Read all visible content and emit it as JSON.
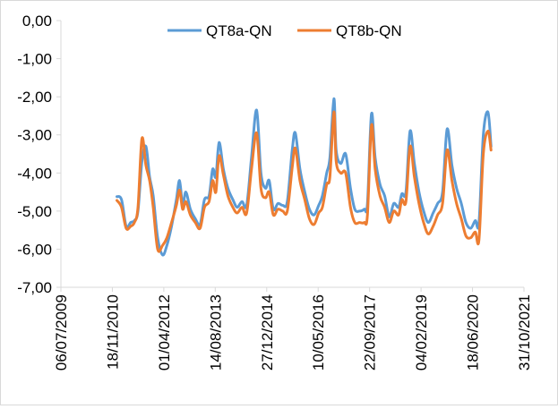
{
  "chart_data": {
    "type": "line",
    "title": "",
    "xlabel": "",
    "ylabel": "",
    "ylim": [
      -7,
      0
    ],
    "y_ticks": [
      "0,00",
      "-1,00",
      "-2,00",
      "-3,00",
      "-4,00",
      "-5,00",
      "-6,00",
      "-7,00"
    ],
    "x_range": [
      "2009-07-06",
      "2021-10-31"
    ],
    "x_ticks": [
      "06/07/2009",
      "18/11/2010",
      "01/04/2012",
      "14/08/2013",
      "27/12/2014",
      "10/05/2016",
      "22/09/2017",
      "04/02/2019",
      "18/06/2020",
      "31/10/2021"
    ],
    "legend_position": "top",
    "grid": false,
    "series": [
      {
        "name": "QT8a-QN",
        "color": "#5B9BD5",
        "points": [
          [
            "2011-01-01",
            -4.62
          ],
          [
            "2011-02-15",
            -4.7
          ],
          [
            "2011-04-01",
            -5.4
          ],
          [
            "2011-05-15",
            -5.3
          ],
          [
            "2011-06-20",
            -5.25
          ],
          [
            "2011-07-25",
            -5.0
          ],
          [
            "2011-09-01",
            -3.7
          ],
          [
            "2011-10-10",
            -3.3
          ],
          [
            "2011-11-15",
            -4.1
          ],
          [
            "2011-12-20",
            -4.6
          ],
          [
            "2012-02-01",
            -5.7
          ],
          [
            "2012-03-20",
            -6.15
          ],
          [
            "2012-05-01",
            -5.9
          ],
          [
            "2012-06-15",
            -5.4
          ],
          [
            "2012-08-01",
            -4.7
          ],
          [
            "2012-09-01",
            -4.2
          ],
          [
            "2012-10-01",
            -4.85
          ],
          [
            "2012-11-01",
            -4.5
          ],
          [
            "2012-12-15",
            -4.95
          ],
          [
            "2013-02-01",
            -5.2
          ],
          [
            "2013-03-20",
            -5.35
          ],
          [
            "2013-05-01",
            -4.7
          ],
          [
            "2013-06-15",
            -4.6
          ],
          [
            "2013-07-20",
            -3.9
          ],
          [
            "2013-08-20",
            -4.1
          ],
          [
            "2013-09-20",
            -3.2
          ],
          [
            "2013-11-01",
            -3.9
          ],
          [
            "2013-12-15",
            -4.4
          ],
          [
            "2014-02-01",
            -4.7
          ],
          [
            "2014-03-15",
            -4.9
          ],
          [
            "2014-05-01",
            -4.75
          ],
          [
            "2014-06-15",
            -4.85
          ],
          [
            "2014-08-01",
            -3.6
          ],
          [
            "2014-09-20",
            -2.35
          ],
          [
            "2014-11-01",
            -4.0
          ],
          [
            "2014-12-15",
            -4.4
          ],
          [
            "2015-01-20",
            -4.2
          ],
          [
            "2015-03-01",
            -4.95
          ],
          [
            "2015-04-15",
            -4.8
          ],
          [
            "2015-06-01",
            -4.85
          ],
          [
            "2015-07-15",
            -4.75
          ],
          [
            "2015-09-01",
            -3.4
          ],
          [
            "2015-10-01",
            -2.95
          ],
          [
            "2015-11-15",
            -3.9
          ],
          [
            "2016-01-01",
            -4.5
          ],
          [
            "2016-02-15",
            -4.95
          ],
          [
            "2016-04-01",
            -5.1
          ],
          [
            "2016-05-15",
            -4.85
          ],
          [
            "2016-06-20",
            -4.6
          ],
          [
            "2016-08-01",
            -4.0
          ],
          [
            "2016-09-01",
            -3.6
          ],
          [
            "2016-10-10",
            -2.05
          ],
          [
            "2016-11-01",
            -3.4
          ],
          [
            "2016-12-15",
            -3.75
          ],
          [
            "2017-02-01",
            -3.5
          ],
          [
            "2017-03-20",
            -4.4
          ],
          [
            "2017-05-01",
            -4.95
          ],
          [
            "2017-06-15",
            -5.0
          ],
          [
            "2017-08-01",
            -4.95
          ],
          [
            "2017-09-01",
            -4.8
          ],
          [
            "2017-10-10",
            -2.45
          ],
          [
            "2017-11-15",
            -3.6
          ],
          [
            "2018-01-01",
            -4.3
          ],
          [
            "2018-02-15",
            -4.6
          ],
          [
            "2018-04-01",
            -5.15
          ],
          [
            "2018-05-15",
            -4.8
          ],
          [
            "2018-07-01",
            -4.9
          ],
          [
            "2018-08-01",
            -4.55
          ],
          [
            "2018-09-10",
            -4.5
          ],
          [
            "2018-10-20",
            -2.9
          ],
          [
            "2018-12-01",
            -3.75
          ],
          [
            "2019-01-15",
            -4.5
          ],
          [
            "2019-03-01",
            -5.0
          ],
          [
            "2019-04-15",
            -5.3
          ],
          [
            "2019-06-01",
            -5.05
          ],
          [
            "2019-07-15",
            -4.8
          ],
          [
            "2019-09-01",
            -4.5
          ],
          [
            "2019-10-15",
            -2.85
          ],
          [
            "2019-12-01",
            -3.8
          ],
          [
            "2020-01-15",
            -4.4
          ],
          [
            "2020-03-01",
            -4.8
          ],
          [
            "2020-04-15",
            -5.3
          ],
          [
            "2020-06-01",
            -5.45
          ],
          [
            "2020-07-15",
            -5.25
          ],
          [
            "2020-08-20",
            -5.3
          ],
          [
            "2020-10-01",
            -3.0
          ],
          [
            "2020-11-15",
            -2.4
          ],
          [
            "2020-12-15",
            -3.3
          ]
        ]
      },
      {
        "name": "QT8b-QN",
        "color": "#ED7D31",
        "points": [
          [
            "2011-01-01",
            -4.72
          ],
          [
            "2011-02-15",
            -4.9
          ],
          [
            "2011-04-01",
            -5.45
          ],
          [
            "2011-05-15",
            -5.4
          ],
          [
            "2011-06-20",
            -5.3
          ],
          [
            "2011-07-25",
            -4.9
          ],
          [
            "2011-09-01",
            -3.1
          ],
          [
            "2011-10-10",
            -3.8
          ],
          [
            "2011-11-15",
            -4.2
          ],
          [
            "2011-12-20",
            -4.9
          ],
          [
            "2012-02-01",
            -6.0
          ],
          [
            "2012-03-20",
            -5.9
          ],
          [
            "2012-05-01",
            -5.7
          ],
          [
            "2012-06-15",
            -5.3
          ],
          [
            "2012-08-01",
            -4.85
          ],
          [
            "2012-09-01",
            -4.45
          ],
          [
            "2012-10-01",
            -4.95
          ],
          [
            "2012-11-01",
            -4.75
          ],
          [
            "2012-12-15",
            -5.1
          ],
          [
            "2013-02-01",
            -5.3
          ],
          [
            "2013-03-20",
            -5.45
          ],
          [
            "2013-05-01",
            -4.9
          ],
          [
            "2013-06-15",
            -4.75
          ],
          [
            "2013-07-20",
            -4.2
          ],
          [
            "2013-08-20",
            -4.5
          ],
          [
            "2013-09-20",
            -3.55
          ],
          [
            "2013-11-01",
            -4.05
          ],
          [
            "2013-12-15",
            -4.6
          ],
          [
            "2014-02-01",
            -4.9
          ],
          [
            "2014-03-15",
            -5.05
          ],
          [
            "2014-05-01",
            -4.9
          ],
          [
            "2014-06-15",
            -5.05
          ],
          [
            "2014-08-01",
            -3.9
          ],
          [
            "2014-09-20",
            -2.95
          ],
          [
            "2014-11-01",
            -4.4
          ],
          [
            "2014-12-15",
            -4.65
          ],
          [
            "2015-01-20",
            -4.5
          ],
          [
            "2015-03-01",
            -5.1
          ],
          [
            "2015-04-15",
            -4.95
          ],
          [
            "2015-06-01",
            -5.0
          ],
          [
            "2015-07-15",
            -5.0
          ],
          [
            "2015-09-01",
            -3.85
          ],
          [
            "2015-10-01",
            -3.35
          ],
          [
            "2015-11-15",
            -4.2
          ],
          [
            "2016-01-01",
            -4.7
          ],
          [
            "2016-02-15",
            -5.2
          ],
          [
            "2016-04-01",
            -5.35
          ],
          [
            "2016-05-15",
            -5.05
          ],
          [
            "2016-06-20",
            -4.9
          ],
          [
            "2016-08-01",
            -4.3
          ],
          [
            "2016-09-01",
            -4.1
          ],
          [
            "2016-10-10",
            -2.4
          ],
          [
            "2016-11-01",
            -3.7
          ],
          [
            "2016-12-15",
            -4.0
          ],
          [
            "2017-02-01",
            -4.0
          ],
          [
            "2017-03-20",
            -4.9
          ],
          [
            "2017-05-01",
            -5.3
          ],
          [
            "2017-06-15",
            -5.3
          ],
          [
            "2017-08-01",
            -5.3
          ],
          [
            "2017-09-01",
            -5.1
          ],
          [
            "2017-10-10",
            -2.75
          ],
          [
            "2017-11-15",
            -3.9
          ],
          [
            "2018-01-01",
            -4.6
          ],
          [
            "2018-02-15",
            -4.9
          ],
          [
            "2018-04-01",
            -5.3
          ],
          [
            "2018-05-15",
            -5.0
          ],
          [
            "2018-07-01",
            -5.1
          ],
          [
            "2018-08-01",
            -4.7
          ],
          [
            "2018-09-10",
            -4.75
          ],
          [
            "2018-10-20",
            -3.3
          ],
          [
            "2018-12-01",
            -4.1
          ],
          [
            "2019-01-15",
            -4.8
          ],
          [
            "2019-03-01",
            -5.3
          ],
          [
            "2019-04-15",
            -5.6
          ],
          [
            "2019-06-01",
            -5.4
          ],
          [
            "2019-07-15",
            -5.1
          ],
          [
            "2019-09-01",
            -4.8
          ],
          [
            "2019-10-15",
            -3.4
          ],
          [
            "2019-12-01",
            -4.2
          ],
          [
            "2020-01-15",
            -4.8
          ],
          [
            "2020-03-01",
            -5.2
          ],
          [
            "2020-04-15",
            -5.65
          ],
          [
            "2020-06-01",
            -5.7
          ],
          [
            "2020-07-15",
            -5.55
          ],
          [
            "2020-08-20",
            -5.75
          ],
          [
            "2020-10-01",
            -3.5
          ],
          [
            "2020-11-15",
            -2.9
          ],
          [
            "2020-12-15",
            -3.4
          ]
        ]
      }
    ]
  }
}
